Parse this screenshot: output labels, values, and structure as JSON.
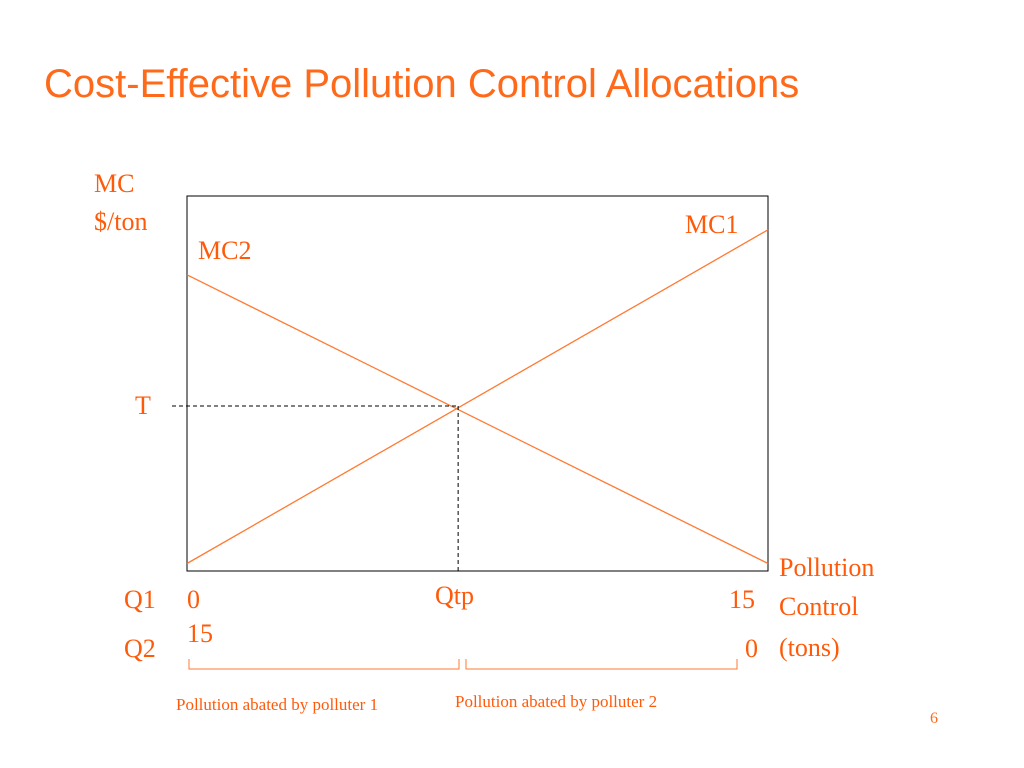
{
  "slide": {
    "title": "Cost-Effective Pollution Control Allocations",
    "page_number": "6"
  },
  "colors": {
    "accent": "#ff6a1a",
    "curve": "#ff7a33",
    "axis": "#000000"
  },
  "chart_data": {
    "type": "line",
    "title": "",
    "ylabel_lines": [
      "MC",
      "$/ton"
    ],
    "xlabel_lines": [
      "Pollution",
      "Control",
      "(tons)"
    ],
    "xlim": [
      0,
      15
    ],
    "ylim": [
      0,
      10
    ],
    "grid": false,
    "series": [
      {
        "name": "MC1",
        "x": [
          0,
          15
        ],
        "y": [
          0.2,
          9.1
        ]
      },
      {
        "name": "MC2",
        "x": [
          0,
          15
        ],
        "y": [
          7.9,
          0.2
        ]
      }
    ],
    "equilibrium": {
      "label_y": "T",
      "label_x": "Qtp",
      "x": 7.0,
      "y": 4.4
    },
    "axis_rows": [
      {
        "name": "Q1",
        "start": "0",
        "end": "15"
      },
      {
        "name": "Q2",
        "start": "15",
        "end": "0"
      }
    ],
    "annotations": [
      "Pollution abated by polluter 1",
      "Pollution abated by polluter 2"
    ]
  }
}
